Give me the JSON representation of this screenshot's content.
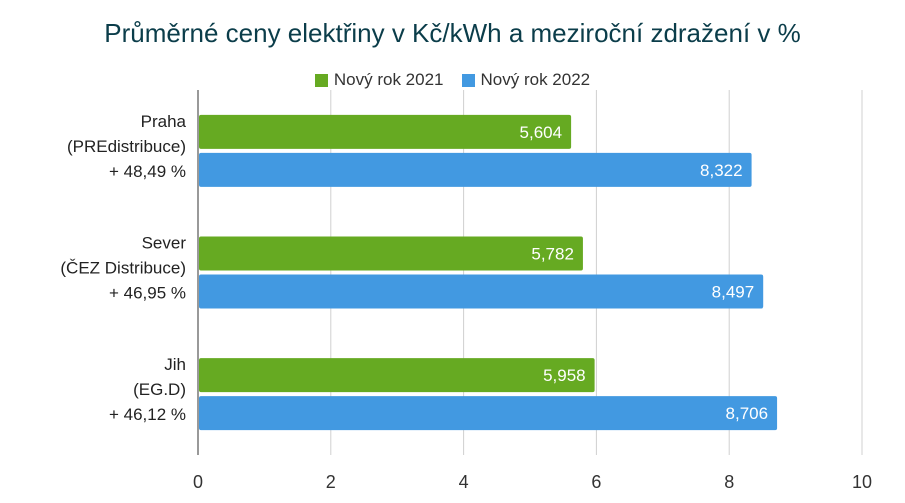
{
  "chart_data": {
    "type": "bar",
    "orientation": "horizontal",
    "title": "Průměrné ceny elektřiny v Kč/kWh a meziroční zdražení v %",
    "categories": [
      [
        "Praha",
        "(PREdistribuce)",
        "+ 48,49 %"
      ],
      [
        "Sever",
        "(ČEZ Distribuce)",
        "+ 46,95 %"
      ],
      [
        "Jih",
        "(EG.D)",
        "+ 46,12 %"
      ]
    ],
    "series": [
      {
        "name": "Nový rok 2021",
        "color": "#66aa22",
        "values": [
          5.604,
          5.782,
          5.958
        ],
        "labels": [
          "5,604",
          "5,782",
          "5,958"
        ]
      },
      {
        "name": "Nový rok 2022",
        "color": "#4299e1",
        "values": [
          8.322,
          8.497,
          8.706
        ],
        "labels": [
          "8,322",
          "8,497",
          "8,706"
        ]
      }
    ],
    "xlim": [
      0,
      10
    ],
    "xticks": [
      0,
      2,
      4,
      6,
      8,
      10
    ],
    "grid": true,
    "legend_position": "top"
  }
}
